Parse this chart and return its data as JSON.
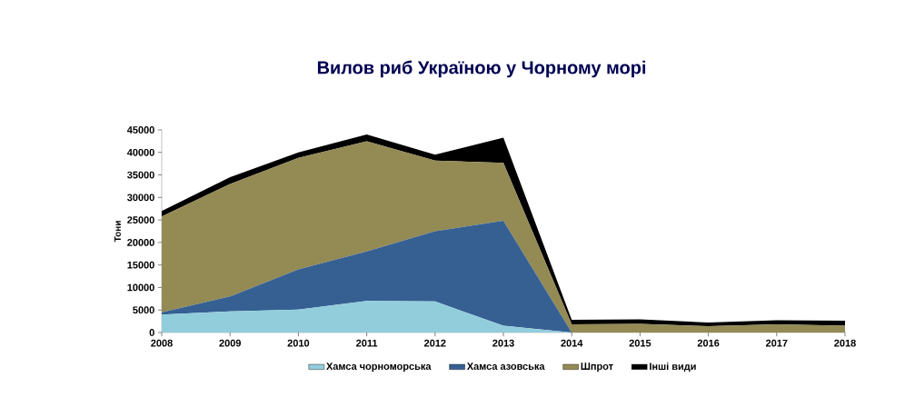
{
  "chart_data": {
    "type": "area",
    "title": "Вилов риб Україною у Чорному морі",
    "ylabel": "Тони",
    "stacked": true,
    "legend": "bottom",
    "x": [
      2008,
      2009,
      2010,
      2011,
      2012,
      2013,
      2014,
      2015,
      2016,
      2017,
      2018
    ],
    "xlim": [
      2008,
      2018
    ],
    "xticks": [
      2008,
      2009,
      2010,
      2011,
      2012,
      2013,
      2014,
      2015,
      2016,
      2017,
      2018
    ],
    "ylim": [
      0,
      45000
    ],
    "yticks": [
      0,
      5000,
      10000,
      15000,
      20000,
      25000,
      30000,
      35000,
      40000,
      45000
    ],
    "series": [
      {
        "name": "Хамса чорноморська",
        "color": "#92cddc",
        "values": [
          4000,
          4700,
          5100,
          7000,
          6900,
          1500,
          0,
          0,
          0,
          0,
          0
        ]
      },
      {
        "name": "Хамса азовська",
        "color": "#366092",
        "values": [
          500,
          3300,
          8900,
          11000,
          15600,
          23300,
          0,
          0,
          0,
          0,
          0
        ]
      },
      {
        "name": "Шпрот",
        "color": "#948a54",
        "values": [
          21300,
          25000,
          24800,
          24500,
          15700,
          12900,
          1800,
          1900,
          1400,
          1800,
          1500
        ]
      },
      {
        "name": "Інші види",
        "color": "#000000",
        "values": [
          1200,
          1500,
          1200,
          1500,
          1300,
          5600,
          1000,
          1000,
          800,
          900,
          1100
        ]
      }
    ]
  }
}
